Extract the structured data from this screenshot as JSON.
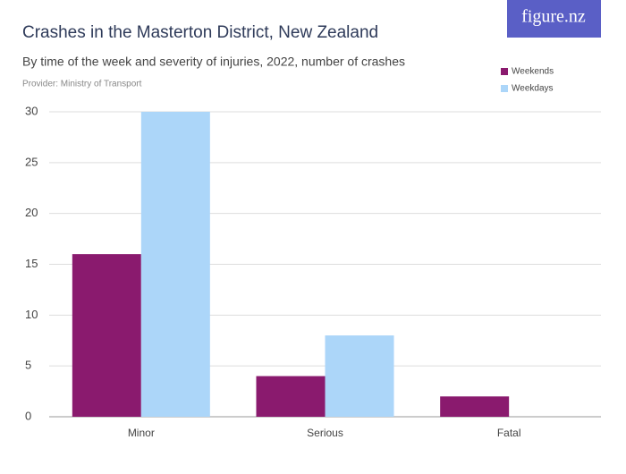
{
  "chart_data": {
    "type": "bar",
    "title": "Crashes in the Masterton District, New Zealand",
    "subtitle": "By time of the week and severity of injuries, 2022, number of crashes",
    "provider": "Provider: Ministry of Transport",
    "logo": "figure.nz",
    "categories": [
      "Minor",
      "Serious",
      "Fatal"
    ],
    "series": [
      {
        "name": "Weekends",
        "color": "#8a1a6e",
        "values": [
          16,
          4,
          2
        ]
      },
      {
        "name": "Weekdays",
        "color": "#acd6f9",
        "values": [
          30,
          8,
          0
        ]
      }
    ],
    "ylim": [
      0,
      30
    ],
    "yticks": [
      0,
      5,
      10,
      15,
      20,
      25,
      30
    ],
    "grid": true,
    "legend": "top-right"
  }
}
